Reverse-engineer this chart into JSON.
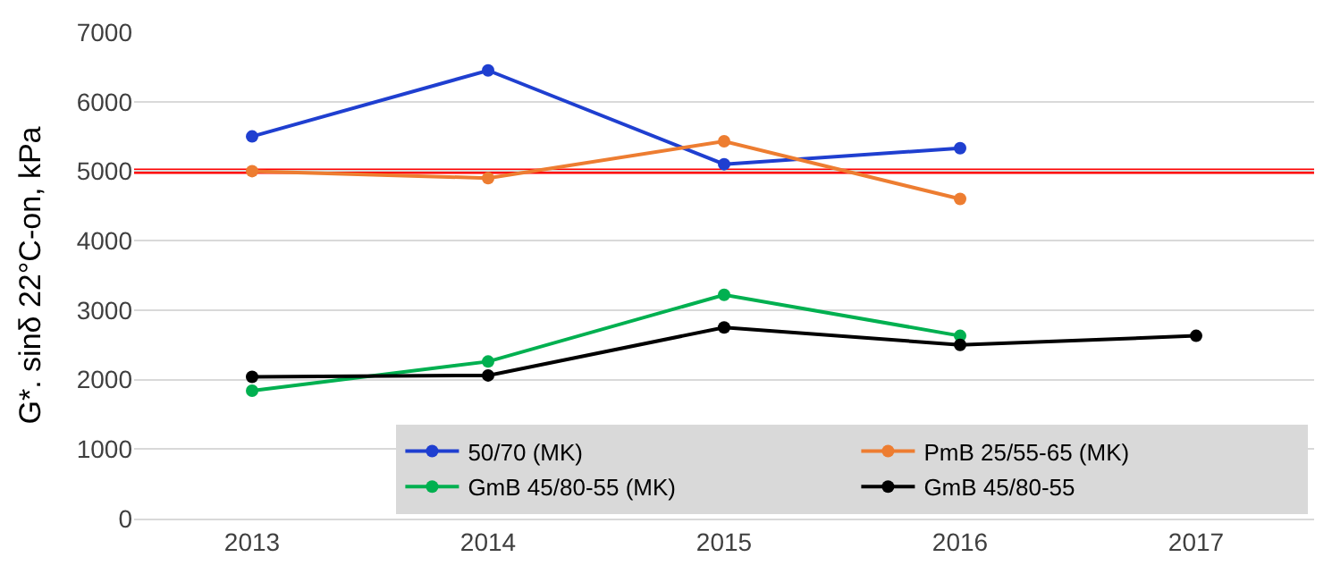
{
  "chart_data": {
    "type": "line",
    "ylabel": "G*. sinδ 22°C-on, kPa",
    "categories": [
      "2013",
      "2014",
      "2015",
      "2016",
      "2017"
    ],
    "series": [
      {
        "name": "50/70 (MK)",
        "color": "#1f3fd0",
        "values": [
          5500,
          6450,
          5100,
          5330,
          null
        ]
      },
      {
        "name": "PmB 25/55-65 (MK)",
        "color": "#ed7d31",
        "values": [
          5000,
          4900,
          5430,
          4600,
          null
        ]
      },
      {
        "name": "GmB 45/80-55 (MK)",
        "color": "#00b050",
        "values": [
          1840,
          2260,
          3220,
          2630,
          null
        ]
      },
      {
        "name": "GmB 45/80-55",
        "color": "#000000",
        "values": [
          2040,
          2060,
          2750,
          2500,
          2630
        ]
      }
    ],
    "ylim": [
      0,
      7000
    ],
    "yticks": [
      0,
      1000,
      2000,
      3000,
      4000,
      5000,
      6000,
      7000
    ],
    "ref_lines": [
      {
        "axis": "y",
        "value": 5000,
        "color": "#ff0000"
      }
    ],
    "grid": "y",
    "legend": "bottom right",
    "marker": "circle",
    "line_style": "solid"
  }
}
